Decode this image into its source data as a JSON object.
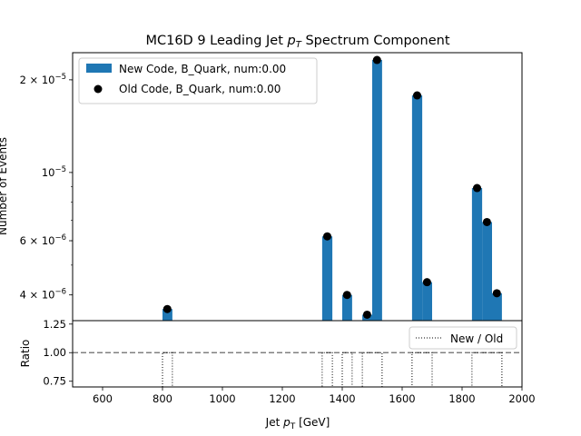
{
  "chart_data": [
    {
      "type": "bar",
      "title_prefix": "MC16D 9 Leading Jet ",
      "title_var": "p",
      "title_sub": "T",
      "title_suffix": " Spectrum Component",
      "ylabel": "Number of Events",
      "yscale": "log",
      "xlim": [
        500,
        2000
      ],
      "ylim": [
        3.3e-06,
        2.45e-05
      ],
      "ytick_labels": [
        {
          "value": 4e-06,
          "mant": "4 × 10",
          "exp": "−6"
        },
        {
          "value": 6e-06,
          "mant": "6 × 10",
          "exp": "−6"
        },
        {
          "value": 1e-05,
          "mant": "10",
          "exp": "−5"
        },
        {
          "value": 2e-05,
          "mant": "2 × 10",
          "exp": "−5"
        }
      ],
      "legend": {
        "placement": "top-left",
        "entries": [
          "New Code, B_Quark, num:0.00",
          "Old Code, B_Quark, num:0.00"
        ]
      },
      "series": [
        {
          "name": "New Code, B_Quark, num:0.00",
          "kind": "bar",
          "color": "#1f77b4",
          "bins": [
            {
              "x0": 800,
              "x1": 833,
              "value": 3.6e-06
            },
            {
              "x0": 1333,
              "x1": 1367,
              "value": 6.2e-06
            },
            {
              "x0": 1400,
              "x1": 1433,
              "value": 4e-06
            },
            {
              "x0": 1467,
              "x1": 1500,
              "value": 3.45e-06
            },
            {
              "x0": 1500,
              "x1": 1533,
              "value": 2.32e-05
            },
            {
              "x0": 1633,
              "x1": 1667,
              "value": 1.78e-05
            },
            {
              "x0": 1667,
              "x1": 1700,
              "value": 4.4e-06
            },
            {
              "x0": 1833,
              "x1": 1867,
              "value": 8.9e-06
            },
            {
              "x0": 1867,
              "x1": 1900,
              "value": 6.9e-06
            },
            {
              "x0": 1900,
              "x1": 1933,
              "value": 4.05e-06
            }
          ]
        },
        {
          "name": "Old Code, B_Quark, num:0.00",
          "kind": "scatter",
          "color": "#000000",
          "points": [
            {
              "x": 816,
              "y": 3.6e-06
            },
            {
              "x": 1350,
              "y": 6.2e-06
            },
            {
              "x": 1416,
              "y": 4e-06
            },
            {
              "x": 1483,
              "y": 3.45e-06
            },
            {
              "x": 1516,
              "y": 2.32e-05
            },
            {
              "x": 1650,
              "y": 1.78e-05
            },
            {
              "x": 1683,
              "y": 4.4e-06
            },
            {
              "x": 1850,
              "y": 8.9e-06
            },
            {
              "x": 1883,
              "y": 6.9e-06
            },
            {
              "x": 1916,
              "y": 4.05e-06
            }
          ]
        }
      ]
    },
    {
      "type": "line",
      "xlabel_var": "p",
      "xlabel_prefix": "Jet ",
      "xlabel_sub": "T",
      "xlabel_suffix": " [GeV]",
      "ylabel": "Ratio",
      "xlim": [
        500,
        2000
      ],
      "ylim": [
        0.7,
        1.28
      ],
      "xticks": [
        600,
        800,
        1000,
        1200,
        1400,
        1600,
        1800,
        2000
      ],
      "yticks": [
        0.75,
        1.0,
        1.25
      ],
      "ytick_labels": [
        "0.75",
        "1.00",
        "1.25"
      ],
      "reference_line": 1.0,
      "legend": {
        "placement": "top-right",
        "entries": [
          "New / Old"
        ]
      },
      "series": [
        {
          "name": "New / Old",
          "style": "dotted",
          "color": "#000000",
          "x": [
            800,
            800,
            833,
            833,
            1333,
            1333,
            1367,
            1367,
            1400,
            1400,
            1433,
            1433,
            1467,
            1467,
            1533,
            1533,
            1633,
            1633,
            1700,
            1700,
            1833,
            1833,
            1933,
            1933
          ],
          "y": [
            0.7,
            1.0,
            1.0,
            0.7,
            0.7,
            1.0,
            1.0,
            0.7,
            0.7,
            1.0,
            1.0,
            0.7,
            0.7,
            1.0,
            1.0,
            0.7,
            0.7,
            1.0,
            1.0,
            0.7,
            0.7,
            1.0,
            1.0,
            0.7
          ]
        }
      ]
    }
  ]
}
